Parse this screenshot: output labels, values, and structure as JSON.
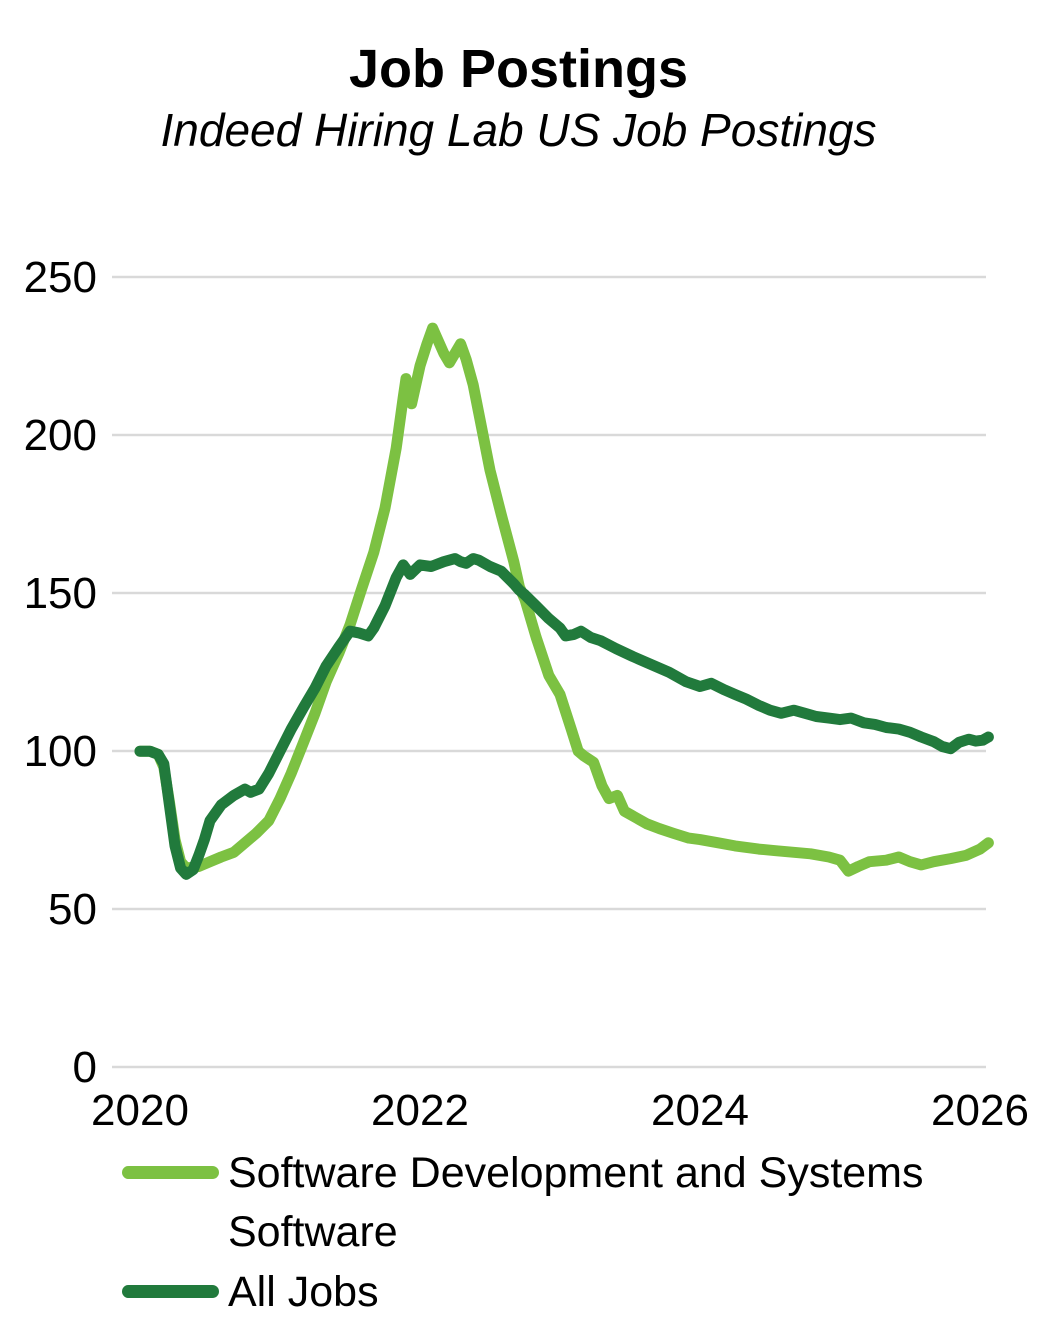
{
  "header": {
    "title": "Job Postings",
    "subtitle": "Indeed Hiring Lab US Job Postings"
  },
  "chart_data": {
    "type": "line",
    "title": "Job Postings",
    "subtitle": "Indeed Hiring Lab US Job Postings",
    "grid": "horizontal",
    "grid_color": "#D9D9D9",
    "legend_position": "bottom-left",
    "x_axis": {
      "ticks": [
        "2020",
        "2022",
        "2024",
        "2026"
      ],
      "range": [
        2020,
        2026.1
      ]
    },
    "y_axis": {
      "ticks": [
        "250",
        "200",
        "150",
        "100",
        "50",
        "0"
      ],
      "range": [
        0,
        250
      ]
    },
    "series": [
      {
        "name": "Software Development and Systems Software",
        "color": "#7CC142",
        "points": [
          [
            2020.0,
            100
          ],
          [
            2020.07,
            100
          ],
          [
            2020.13,
            99
          ],
          [
            2020.17,
            95
          ],
          [
            2020.21,
            84
          ],
          [
            2020.25,
            72
          ],
          [
            2020.29,
            65
          ],
          [
            2020.33,
            63
          ],
          [
            2020.42,
            63.5
          ],
          [
            2020.5,
            65
          ],
          [
            2020.58,
            66.5
          ],
          [
            2020.67,
            68
          ],
          [
            2020.75,
            71
          ],
          [
            2020.83,
            74
          ],
          [
            2020.92,
            78
          ],
          [
            2021.0,
            85
          ],
          [
            2021.08,
            93
          ],
          [
            2021.17,
            103
          ],
          [
            2021.25,
            112
          ],
          [
            2021.33,
            122
          ],
          [
            2021.42,
            131
          ],
          [
            2021.5,
            140
          ],
          [
            2021.58,
            151
          ],
          [
            2021.67,
            163
          ],
          [
            2021.75,
            177
          ],
          [
            2021.83,
            196
          ],
          [
            2021.88,
            212
          ],
          [
            2021.9,
            218
          ],
          [
            2021.94,
            210
          ],
          [
            2022.0,
            222
          ],
          [
            2022.05,
            229
          ],
          [
            2022.09,
            234
          ],
          [
            2022.13,
            230
          ],
          [
            2022.17,
            226
          ],
          [
            2022.21,
            223
          ],
          [
            2022.25,
            226
          ],
          [
            2022.29,
            229
          ],
          [
            2022.33,
            224
          ],
          [
            2022.38,
            216
          ],
          [
            2022.42,
            207
          ],
          [
            2022.5,
            189
          ],
          [
            2022.58,
            175
          ],
          [
            2022.67,
            160
          ],
          [
            2022.71,
            152
          ],
          [
            2022.75,
            148
          ],
          [
            2022.83,
            136
          ],
          [
            2022.92,
            124
          ],
          [
            2023.0,
            118
          ],
          [
            2023.08,
            107
          ],
          [
            2023.13,
            100
          ],
          [
            2023.17,
            98.5
          ],
          [
            2023.24,
            96.5
          ],
          [
            2023.3,
            89
          ],
          [
            2023.35,
            85
          ],
          [
            2023.41,
            86
          ],
          [
            2023.46,
            81
          ],
          [
            2023.54,
            79
          ],
          [
            2023.62,
            77
          ],
          [
            2023.71,
            75.5
          ],
          [
            2023.81,
            74
          ],
          [
            2023.92,
            72.5
          ],
          [
            2024.0,
            72
          ],
          [
            2024.13,
            71
          ],
          [
            2024.25,
            70
          ],
          [
            2024.42,
            69
          ],
          [
            2024.54,
            68.5
          ],
          [
            2024.67,
            68
          ],
          [
            2024.79,
            67.5
          ],
          [
            2024.92,
            66.5
          ],
          [
            2025.0,
            65.5
          ],
          [
            2025.06,
            62
          ],
          [
            2025.13,
            63.5
          ],
          [
            2025.21,
            65
          ],
          [
            2025.33,
            65.5
          ],
          [
            2025.42,
            66.5
          ],
          [
            2025.5,
            65
          ],
          [
            2025.58,
            64
          ],
          [
            2025.67,
            65
          ],
          [
            2025.79,
            66
          ],
          [
            2025.9,
            67
          ],
          [
            2026.0,
            69
          ],
          [
            2026.06,
            71
          ]
        ]
      },
      {
        "name": "All Jobs",
        "color": "#217A3C",
        "points": [
          [
            2020.0,
            100
          ],
          [
            2020.07,
            100
          ],
          [
            2020.13,
            99
          ],
          [
            2020.17,
            96
          ],
          [
            2020.21,
            83
          ],
          [
            2020.25,
            70
          ],
          [
            2020.29,
            63
          ],
          [
            2020.33,
            61
          ],
          [
            2020.38,
            62.5
          ],
          [
            2020.42,
            67
          ],
          [
            2020.46,
            72
          ],
          [
            2020.5,
            78
          ],
          [
            2020.58,
            83
          ],
          [
            2020.67,
            86
          ],
          [
            2020.75,
            88
          ],
          [
            2020.79,
            87
          ],
          [
            2020.85,
            88
          ],
          [
            2020.92,
            93
          ],
          [
            2021.0,
            100
          ],
          [
            2021.08,
            107
          ],
          [
            2021.17,
            114
          ],
          [
            2021.25,
            120
          ],
          [
            2021.33,
            127
          ],
          [
            2021.42,
            133
          ],
          [
            2021.5,
            138
          ],
          [
            2021.56,
            137.5
          ],
          [
            2021.63,
            136.5
          ],
          [
            2021.67,
            139
          ],
          [
            2021.75,
            146
          ],
          [
            2021.83,
            155
          ],
          [
            2021.88,
            159
          ],
          [
            2021.93,
            156
          ],
          [
            2022.0,
            159
          ],
          [
            2022.08,
            158.5
          ],
          [
            2022.17,
            160
          ],
          [
            2022.25,
            161
          ],
          [
            2022.29,
            160
          ],
          [
            2022.33,
            159.5
          ],
          [
            2022.38,
            161
          ],
          [
            2022.42,
            160.5
          ],
          [
            2022.5,
            158.5
          ],
          [
            2022.58,
            157
          ],
          [
            2022.67,
            153
          ],
          [
            2022.71,
            151
          ],
          [
            2022.75,
            149.5
          ],
          [
            2022.83,
            146
          ],
          [
            2022.92,
            142
          ],
          [
            2023.0,
            139
          ],
          [
            2023.04,
            136.5
          ],
          [
            2023.1,
            137
          ],
          [
            2023.15,
            138
          ],
          [
            2023.22,
            136
          ],
          [
            2023.29,
            135
          ],
          [
            2023.4,
            132.5
          ],
          [
            2023.52,
            130
          ],
          [
            2023.65,
            127.5
          ],
          [
            2023.78,
            125
          ],
          [
            2023.9,
            122
          ],
          [
            2024.0,
            120.5
          ],
          [
            2024.08,
            121.5
          ],
          [
            2024.17,
            119.5
          ],
          [
            2024.25,
            118
          ],
          [
            2024.33,
            116.5
          ],
          [
            2024.42,
            114.5
          ],
          [
            2024.5,
            113
          ],
          [
            2024.58,
            112
          ],
          [
            2024.67,
            113
          ],
          [
            2024.75,
            112
          ],
          [
            2024.83,
            111
          ],
          [
            2024.92,
            110.5
          ],
          [
            2025.0,
            110
          ],
          [
            2025.08,
            110.5
          ],
          [
            2025.17,
            109
          ],
          [
            2025.25,
            108.5
          ],
          [
            2025.33,
            107.5
          ],
          [
            2025.42,
            107
          ],
          [
            2025.5,
            106
          ],
          [
            2025.58,
            104.5
          ],
          [
            2025.67,
            103
          ],
          [
            2025.73,
            101.5
          ],
          [
            2025.79,
            100.8
          ],
          [
            2025.85,
            102.8
          ],
          [
            2025.92,
            103.8
          ],
          [
            2025.97,
            103.2
          ],
          [
            2026.02,
            103.5
          ],
          [
            2026.06,
            104.5
          ]
        ]
      }
    ]
  }
}
